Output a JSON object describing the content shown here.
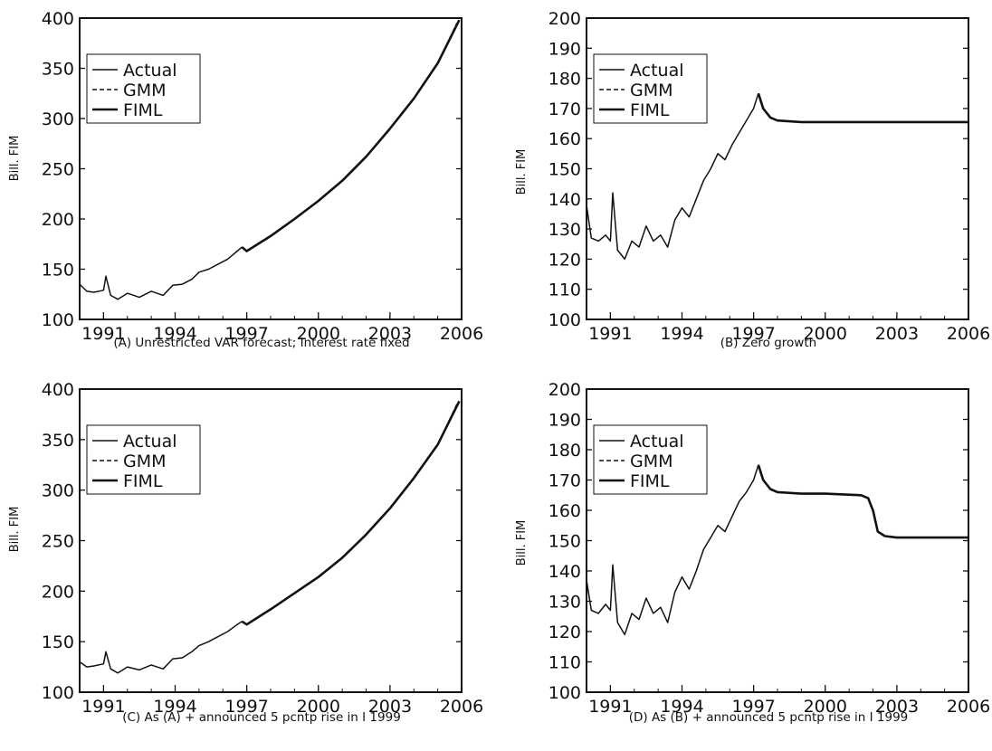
{
  "chart_data": [
    {
      "id": "A",
      "type": "line",
      "caption": "(A) Unrestricted VAR forecast; Interest rate fixed",
      "ylabel": "Bill. FIM",
      "xlim": [
        1990,
        2006
      ],
      "ylim": [
        100,
        400
      ],
      "xticks": [
        1991,
        1994,
        1997,
        2000,
        2003,
        2006
      ],
      "yticks": [
        100,
        150,
        200,
        250,
        300,
        350,
        400
      ],
      "legend": {
        "position": "top-left",
        "entries": [
          "Actual",
          "GMM",
          "FIML"
        ]
      },
      "grid": false,
      "series": [
        {
          "name": "Actual",
          "style": "solid",
          "points": [
            [
              1990.0,
              135
            ],
            [
              1990.3,
              128
            ],
            [
              1990.6,
              127
            ],
            [
              1991.0,
              129
            ],
            [
              1991.1,
              143
            ],
            [
              1991.3,
              124
            ],
            [
              1991.6,
              120
            ],
            [
              1992.0,
              126
            ],
            [
              1992.5,
              122
            ],
            [
              1993.0,
              128
            ],
            [
              1993.5,
              124
            ],
            [
              1993.9,
              134
            ],
            [
              1994.3,
              135
            ],
            [
              1994.7,
              140
            ],
            [
              1995.0,
              147
            ],
            [
              1995.4,
              150
            ],
            [
              1995.8,
              155
            ],
            [
              1996.2,
              160
            ],
            [
              1996.6,
              168
            ],
            [
              1996.8,
              172
            ]
          ]
        },
        {
          "name": "GMM",
          "style": "dashed",
          "points": [
            [
              1996.8,
              172
            ],
            [
              1997.0,
              168
            ],
            [
              1998.0,
              183
            ],
            [
              1999.0,
              200
            ],
            [
              2000.0,
              218
            ],
            [
              2001.0,
              238
            ],
            [
              2002.0,
              262
            ],
            [
              2003.0,
              290
            ],
            [
              2004.0,
              320
            ],
            [
              2005.0,
              355
            ],
            [
              2005.8,
              395
            ]
          ]
        },
        {
          "name": "FIML",
          "style": "thick",
          "points": [
            [
              1996.8,
              172
            ],
            [
              1997.0,
              168
            ],
            [
              1998.0,
              183
            ],
            [
              1999.0,
              200
            ],
            [
              2000.0,
              218
            ],
            [
              2001.0,
              238
            ],
            [
              2002.0,
              262
            ],
            [
              2003.0,
              290
            ],
            [
              2004.0,
              320
            ],
            [
              2005.0,
              355
            ],
            [
              2005.9,
              398
            ]
          ]
        }
      ]
    },
    {
      "id": "B",
      "type": "line",
      "caption": "(B) Zero growth",
      "ylabel": "Bill. FIM",
      "xlim": [
        1990,
        2006
      ],
      "ylim": [
        100,
        200
      ],
      "xticks": [
        1991,
        1994,
        1997,
        2000,
        2003,
        2006
      ],
      "yticks": [
        100,
        110,
        120,
        130,
        140,
        150,
        160,
        170,
        180,
        190,
        200
      ],
      "legend": {
        "position": "top-left",
        "entries": [
          "Actual",
          "GMM",
          "FIML"
        ]
      },
      "grid": false,
      "series": [
        {
          "name": "Actual",
          "style": "solid",
          "points": [
            [
              1990.0,
              138
            ],
            [
              1990.2,
              127
            ],
            [
              1990.5,
              126
            ],
            [
              1990.8,
              128
            ],
            [
              1991.0,
              126
            ],
            [
              1991.1,
              142
            ],
            [
              1991.3,
              123
            ],
            [
              1991.6,
              120
            ],
            [
              1991.9,
              126
            ],
            [
              1992.2,
              124
            ],
            [
              1992.5,
              131
            ],
            [
              1992.8,
              126
            ],
            [
              1993.1,
              128
            ],
            [
              1993.4,
              124
            ],
            [
              1993.7,
              133
            ],
            [
              1994.0,
              137
            ],
            [
              1994.3,
              134
            ],
            [
              1994.6,
              140
            ],
            [
              1994.9,
              146
            ],
            [
              1995.2,
              150
            ],
            [
              1995.5,
              155
            ],
            [
              1995.8,
              153
            ],
            [
              1996.1,
              158
            ],
            [
              1996.4,
              162
            ],
            [
              1996.7,
              166
            ],
            [
              1997.0,
              170
            ],
            [
              1997.2,
              175
            ]
          ]
        },
        {
          "name": "GMM",
          "style": "dashed",
          "points": [
            [
              1997.2,
              175
            ],
            [
              1997.4,
              170
            ],
            [
              1997.7,
              167
            ],
            [
              1998.0,
              166
            ],
            [
              1999.0,
              165.5
            ],
            [
              2000.0,
              165.5
            ],
            [
              2003.0,
              165.5
            ],
            [
              2006.0,
              165.5
            ]
          ]
        },
        {
          "name": "FIML",
          "style": "thick",
          "points": [
            [
              1997.2,
              175
            ],
            [
              1997.4,
              170
            ],
            [
              1997.7,
              167
            ],
            [
              1998.0,
              166
            ],
            [
              1999.0,
              165.5
            ],
            [
              2000.0,
              165.5
            ],
            [
              2003.0,
              165.5
            ],
            [
              2006.0,
              165.5
            ]
          ]
        }
      ]
    },
    {
      "id": "C",
      "type": "line",
      "caption": "(C) As (A) + announced 5 pcntp rise in I 1999",
      "ylabel": "Bill. FIM",
      "xlim": [
        1990,
        2006
      ],
      "ylim": [
        100,
        400
      ],
      "xticks": [
        1991,
        1994,
        1997,
        2000,
        2003,
        2006
      ],
      "yticks": [
        100,
        150,
        200,
        250,
        300,
        350,
        400
      ],
      "legend": {
        "position": "top-left",
        "entries": [
          "Actual",
          "GMM",
          "FIML"
        ]
      },
      "grid": false,
      "series": [
        {
          "name": "Actual",
          "style": "solid",
          "points": [
            [
              1990.0,
              130
            ],
            [
              1990.3,
              125
            ],
            [
              1990.6,
              126
            ],
            [
              1991.0,
              128
            ],
            [
              1991.1,
              140
            ],
            [
              1991.3,
              123
            ],
            [
              1991.6,
              119
            ],
            [
              1992.0,
              125
            ],
            [
              1992.5,
              122
            ],
            [
              1993.0,
              127
            ],
            [
              1993.5,
              123
            ],
            [
              1993.9,
              133
            ],
            [
              1994.3,
              134
            ],
            [
              1994.7,
              140
            ],
            [
              1995.0,
              146
            ],
            [
              1995.4,
              150
            ],
            [
              1995.8,
              155
            ],
            [
              1996.2,
              160
            ],
            [
              1996.6,
              167
            ],
            [
              1996.8,
              170
            ]
          ]
        },
        {
          "name": "GMM",
          "style": "dashed",
          "points": [
            [
              1996.8,
              170
            ],
            [
              1997.0,
              167
            ],
            [
              1998.0,
              182
            ],
            [
              1999.0,
              198
            ],
            [
              2000.0,
              214
            ],
            [
              2001.0,
              233
            ],
            [
              2002.0,
              256
            ],
            [
              2003.0,
              282
            ],
            [
              2004.0,
              312
            ],
            [
              2005.0,
              345
            ],
            [
              2005.8,
              385
            ]
          ]
        },
        {
          "name": "FIML",
          "style": "thick",
          "points": [
            [
              1996.8,
              170
            ],
            [
              1997.0,
              167
            ],
            [
              1998.0,
              182
            ],
            [
              1999.0,
              198
            ],
            [
              2000.0,
              214
            ],
            [
              2001.0,
              233
            ],
            [
              2002.0,
              256
            ],
            [
              2003.0,
              282
            ],
            [
              2004.0,
              312
            ],
            [
              2005.0,
              345
            ],
            [
              2005.9,
              388
            ]
          ]
        }
      ]
    },
    {
      "id": "D",
      "type": "line",
      "caption": "(D) As (B) + announced 5 pcntp rise in I 1999",
      "ylabel": "Bill. FIM",
      "xlim": [
        1990,
        2006
      ],
      "ylim": [
        100,
        200
      ],
      "xticks": [
        1991,
        1994,
        1997,
        2000,
        2003,
        2006
      ],
      "yticks": [
        100,
        110,
        120,
        130,
        140,
        150,
        160,
        170,
        180,
        190,
        200
      ],
      "legend": {
        "position": "top-left",
        "entries": [
          "Actual",
          "GMM",
          "FIML"
        ]
      },
      "grid": false,
      "series": [
        {
          "name": "Actual",
          "style": "solid",
          "points": [
            [
              1990.0,
              137
            ],
            [
              1990.2,
              127
            ],
            [
              1990.5,
              126
            ],
            [
              1990.8,
              129
            ],
            [
              1991.0,
              127
            ],
            [
              1991.1,
              142
            ],
            [
              1991.3,
              123
            ],
            [
              1991.6,
              119
            ],
            [
              1991.9,
              126
            ],
            [
              1992.2,
              124
            ],
            [
              1992.5,
              131
            ],
            [
              1992.8,
              126
            ],
            [
              1993.1,
              128
            ],
            [
              1993.4,
              123
            ],
            [
              1993.7,
              133
            ],
            [
              1994.0,
              138
            ],
            [
              1994.3,
              134
            ],
            [
              1994.6,
              140
            ],
            [
              1994.9,
              147
            ],
            [
              1995.2,
              151
            ],
            [
              1995.5,
              155
            ],
            [
              1995.8,
              153
            ],
            [
              1996.1,
              158
            ],
            [
              1996.4,
              163
            ],
            [
              1996.7,
              166
            ],
            [
              1997.0,
              170
            ],
            [
              1997.2,
              175
            ]
          ]
        },
        {
          "name": "GMM",
          "style": "dashed",
          "points": [
            [
              1997.2,
              175
            ],
            [
              1997.4,
              170
            ],
            [
              1997.7,
              167
            ],
            [
              1998.0,
              166
            ],
            [
              1999.0,
              165.5
            ],
            [
              2000.0,
              165.5
            ],
            [
              2001.5,
              165
            ],
            [
              2001.8,
              164
            ],
            [
              2002.0,
              160
            ],
            [
              2002.2,
              153
            ],
            [
              2002.5,
              151.5
            ],
            [
              2003.0,
              151
            ],
            [
              2006.0,
              151
            ]
          ]
        },
        {
          "name": "FIML",
          "style": "thick",
          "points": [
            [
              1997.2,
              175
            ],
            [
              1997.4,
              170
            ],
            [
              1997.7,
              167
            ],
            [
              1998.0,
              166
            ],
            [
              1999.0,
              165.5
            ],
            [
              2000.0,
              165.5
            ],
            [
              2001.5,
              165
            ],
            [
              2001.8,
              164
            ],
            [
              2002.0,
              160
            ],
            [
              2002.2,
              153
            ],
            [
              2002.5,
              151.5
            ],
            [
              2003.0,
              151
            ],
            [
              2006.0,
              151
            ]
          ]
        }
      ]
    }
  ]
}
